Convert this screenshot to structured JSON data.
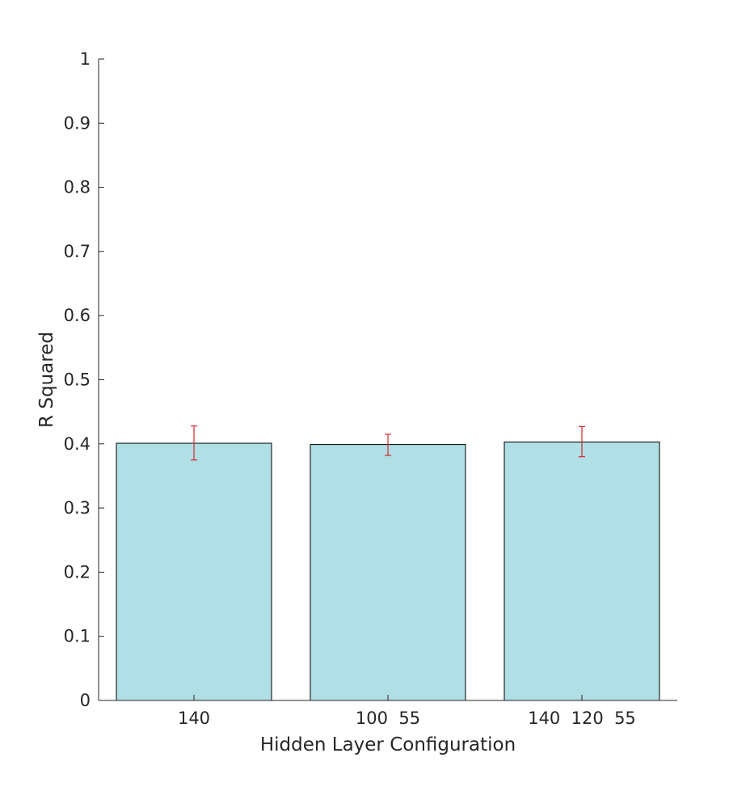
{
  "chart_data": {
    "type": "bar",
    "categories": [
      "140",
      "100  55",
      "140  120  55"
    ],
    "values": [
      0.401,
      0.399,
      0.403
    ],
    "error_low": [
      0.375,
      0.382,
      0.38
    ],
    "error_high": [
      0.428,
      0.415,
      0.427
    ],
    "xlabel": "Hidden Layer Configuration",
    "ylabel": "R Squared",
    "ylim": [
      0,
      1
    ],
    "yticks": [
      0,
      0.1,
      0.2,
      0.3,
      0.4,
      0.5,
      0.6,
      0.7,
      0.8,
      0.9,
      1
    ],
    "ytick_labels": [
      "0",
      "0.1",
      "0.2",
      "0.3",
      "0.4",
      "0.5",
      "0.6",
      "0.7",
      "0.8",
      "0.9",
      "1"
    ],
    "grid": false,
    "bar_color": "#b0dfe5",
    "error_color": "#d62728"
  }
}
